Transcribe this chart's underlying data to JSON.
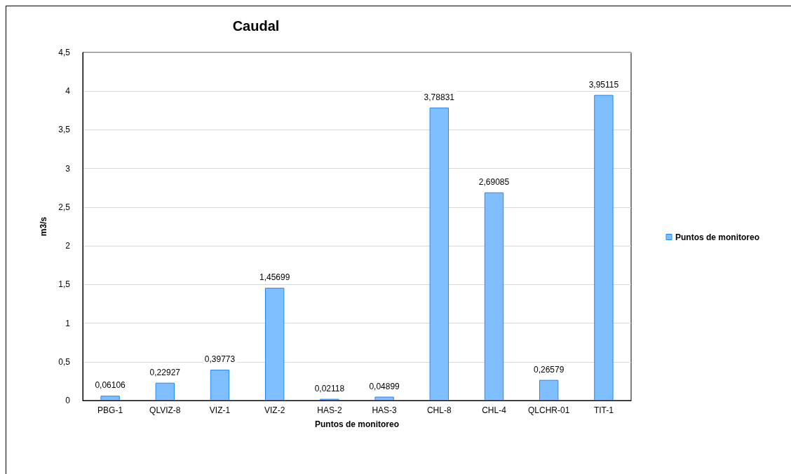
{
  "chart_data": {
    "type": "bar",
    "title": "Caudal",
    "xlabel": "Puntos de monitoreo",
    "ylabel": "m3/s",
    "categories": [
      "PBG-1",
      "QLVIZ-8",
      "VIZ-1",
      "VIZ-2",
      "HAS-2",
      "HAS-3",
      "CHL-8",
      "CHL-4",
      "QLCHR-01",
      "TIT-1"
    ],
    "series": [
      {
        "name": "Puntos de monitoreo",
        "color": "#80bfff",
        "values": [
          0.06106,
          0.22927,
          0.39773,
          1.45699,
          0.02118,
          0.04899,
          3.78831,
          2.69085,
          0.26579,
          3.95115
        ],
        "value_labels": [
          "0,06106",
          "0,22927",
          "0,39773",
          "1,45699",
          "0,02118",
          "0,04899",
          "3,78831",
          "2,69085",
          "0,26579",
          "3,95115"
        ]
      }
    ],
    "ylim": [
      0,
      4.5
    ],
    "yticks": [
      0,
      {
        "value": 0.5,
        "label": "0,5"
      },
      1,
      {
        "value": 1.5,
        "label": "1,5"
      },
      2,
      {
        "value": 2.5,
        "label": "2,5"
      },
      3,
      {
        "value": 3.5,
        "label": "3,5"
      },
      4,
      {
        "value": 4.5,
        "label": "4,5"
      }
    ],
    "grid": "y",
    "legend": "right"
  }
}
